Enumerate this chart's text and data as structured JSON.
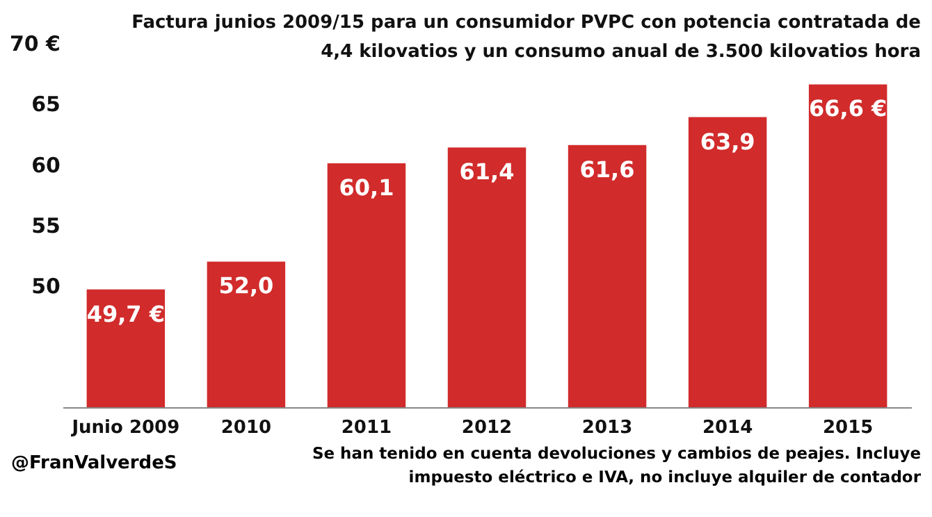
{
  "chart_data": {
    "type": "bar",
    "title": "Factura junios 2009/15 para un consumidor PVPC con potencia contratada de  4,4 kilovatios y un consumo anual de 3.500 kilovatios hora",
    "categories": [
      "Junio 2009",
      "2010",
      "2011",
      "2012",
      "2013",
      "2014",
      "2015"
    ],
    "values": [
      49.7,
      52.0,
      60.1,
      61.4,
      61.6,
      63.9,
      66.6
    ],
    "value_labels": [
      "49,7 €",
      "52,0",
      "60,1",
      "61,4",
      "61,6",
      "63,9",
      "66,6 €"
    ],
    "color": "#d12b2b",
    "ylim": [
      40,
      70
    ],
    "yticks": [
      50,
      55,
      60,
      65,
      {
        "value": 70,
        "label": "70 €"
      }
    ],
    "annotations": [
      "@FranValverdeS",
      "Se han tenido en cuenta devoluciones y cambios de peajes. Incluye impuesto eléctrico e IVA, no incluye alquiler de contador"
    ]
  }
}
